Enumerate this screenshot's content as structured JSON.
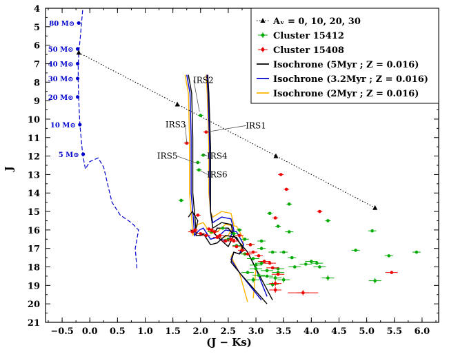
{
  "chart_data": {
    "type": "scatter",
    "title": "",
    "xlabel": "(J − Ks)",
    "ylabel": "J",
    "xlim": [
      -0.8,
      6.3
    ],
    "ylim": [
      21,
      4
    ],
    "x_ticks": [
      "−0.5",
      "0.0",
      "0.5",
      "1.0",
      "1.5",
      "2.0",
      "2.5",
      "3.0",
      "3.5",
      "4.0",
      "4.5",
      "5.0",
      "5.5",
      "6.0"
    ],
    "y_ticks": [
      "4",
      "5",
      "6",
      "7",
      "8",
      "9",
      "10",
      "11",
      "12",
      "13",
      "14",
      "15",
      "16",
      "17",
      "18",
      "19",
      "20",
      "21"
    ],
    "legend": [
      {
        "label": "Aᵥ = 0, 10, 20, 30",
        "color": "#000000",
        "style": "dotted-triangle"
      },
      {
        "label": "Cluster 15412",
        "color": "#00aa00",
        "style": "point-errorbar"
      },
      {
        "label": "Cluster 15408",
        "color": "#ee0000",
        "style": "point-errorbar"
      },
      {
        "label": "Isochrone (5Myr ; Z = 0.016)",
        "color": "#000000",
        "style": "line"
      },
      {
        "label": "Isochrone (3.2Myr ; Z = 0.016)",
        "color": "#0000cc",
        "style": "line"
      },
      {
        "label": "Isochrone (2Myr ; Z = 0.016)",
        "color": "#ffb400",
        "style": "line"
      }
    ],
    "ms_masses": [
      {
        "label": "80 M⊙",
        "x": -0.2,
        "y": 4.8
      },
      {
        "label": "50 M⊙",
        "x": -0.22,
        "y": 6.2
      },
      {
        "label": "40 M⊙",
        "x": -0.22,
        "y": 7.0
      },
      {
        "label": "30 M⊙",
        "x": -0.22,
        "y": 7.8
      },
      {
        "label": "20 M⊙",
        "x": -0.22,
        "y": 8.8
      },
      {
        "label": "10 M⊙",
        "x": -0.18,
        "y": 10.3
      },
      {
        "label": "5 M⊙",
        "x": -0.12,
        "y": 11.9
      }
    ],
    "reddening_vector": {
      "points": [
        [
          -0.2,
          6.4
        ],
        [
          1.58,
          9.2
        ],
        [
          3.36,
          12.0
        ],
        [
          5.15,
          14.8
        ]
      ],
      "av": [
        0,
        10,
        20,
        30
      ]
    },
    "annotations": [
      {
        "label": "IRS1",
        "tx": 3.0,
        "ty": 10.35,
        "px": 2.1,
        "py": 10.7
      },
      {
        "label": "IRS2",
        "tx": 2.05,
        "ty": 7.9,
        "px": 1.98,
        "py": 9.6
      },
      {
        "label": "IRS3",
        "tx": 1.55,
        "ty": 10.3,
        "px": 1.75,
        "py": 11.3
      },
      {
        "label": "IRS4",
        "tx": 2.3,
        "ty": 12.0,
        "px": 2.04,
        "py": 11.9
      },
      {
        "label": "IRS5",
        "tx": 1.4,
        "ty": 12.0,
        "px": 1.95,
        "py": 12.4
      },
      {
        "label": "IRS6",
        "tx": 2.3,
        "ty": 13.0,
        "px": 2.0,
        "py": 12.8
      }
    ],
    "series_15412": {
      "name": "Cluster 15412",
      "color": "#00aa00",
      "points": [
        [
          2.0,
          9.8
        ],
        [
          2.05,
          11.95
        ],
        [
          1.95,
          12.35
        ],
        [
          1.97,
          12.75
        ],
        [
          1.65,
          14.4
        ],
        [
          3.6,
          14.6
        ],
        [
          3.25,
          15.1
        ],
        [
          4.3,
          15.5
        ],
        [
          3.4,
          15.8
        ],
        [
          3.6,
          16.1
        ],
        [
          5.1,
          16.05
        ],
        [
          3.1,
          16.6
        ],
        [
          2.9,
          16.8
        ],
        [
          3.1,
          17.0
        ],
        [
          3.3,
          17.2
        ],
        [
          4.8,
          17.1
        ],
        [
          5.9,
          17.2
        ],
        [
          3.65,
          17.5
        ],
        [
          3.5,
          17.2
        ],
        [
          2.65,
          16.85
        ],
        [
          2.8,
          17.3
        ],
        [
          2.95,
          17.55
        ],
        [
          3.1,
          17.8
        ],
        [
          4.0,
          17.7
        ],
        [
          4.1,
          17.8
        ],
        [
          3.9,
          17.85
        ],
        [
          4.15,
          18.0
        ],
        [
          3.7,
          18.0
        ],
        [
          5.4,
          17.4
        ],
        [
          3.0,
          18.1
        ],
        [
          3.2,
          18.2
        ],
        [
          3.4,
          18.3
        ],
        [
          3.05,
          18.45
        ],
        [
          3.2,
          18.5
        ],
        [
          3.35,
          18.6
        ],
        [
          3.5,
          18.7
        ],
        [
          2.95,
          18.7
        ],
        [
          5.15,
          18.75
        ],
        [
          4.3,
          18.6
        ],
        [
          3.3,
          18.95
        ],
        [
          2.85,
          18.3
        ],
        [
          2.5,
          16.5
        ],
        [
          2.6,
          16.2
        ],
        [
          2.2,
          16.1
        ],
        [
          2.4,
          15.9
        ],
        [
          2.7,
          16.0
        ],
        [
          2.8,
          16.5
        ],
        [
          3.0,
          17.9
        ],
        [
          3.4,
          18.1
        ]
      ]
    },
    "series_15408": {
      "name": "Cluster 15408",
      "color": "#ee0000",
      "points": [
        [
          2.1,
          10.7
        ],
        [
          1.75,
          11.3
        ],
        [
          3.45,
          13.0
        ],
        [
          3.55,
          13.8
        ],
        [
          3.35,
          15.35
        ],
        [
          4.15,
          15.0
        ],
        [
          1.95,
          15.2
        ],
        [
          1.85,
          16.1
        ],
        [
          2.0,
          16.2
        ],
        [
          2.1,
          16.3
        ],
        [
          2.2,
          16.0
        ],
        [
          2.3,
          16.4
        ],
        [
          2.45,
          16.6
        ],
        [
          2.55,
          16.5
        ],
        [
          2.65,
          16.9
        ],
        [
          2.75,
          17.1
        ],
        [
          2.85,
          17.3
        ],
        [
          2.95,
          17.2
        ],
        [
          3.05,
          17.4
        ],
        [
          3.15,
          17.7
        ],
        [
          3.25,
          17.8
        ],
        [
          3.3,
          18.05
        ],
        [
          3.35,
          18.9
        ],
        [
          3.35,
          19.25
        ],
        [
          3.4,
          18.4
        ],
        [
          3.85,
          19.4
        ],
        [
          5.45,
          18.3
        ],
        [
          2.35,
          16.3
        ],
        [
          2.6,
          16.6
        ],
        [
          2.7,
          16.3
        ],
        [
          2.9,
          16.8
        ],
        [
          1.9,
          16.0
        ],
        [
          2.15,
          15.95
        ],
        [
          2.25,
          16.1
        ]
      ]
    }
  }
}
